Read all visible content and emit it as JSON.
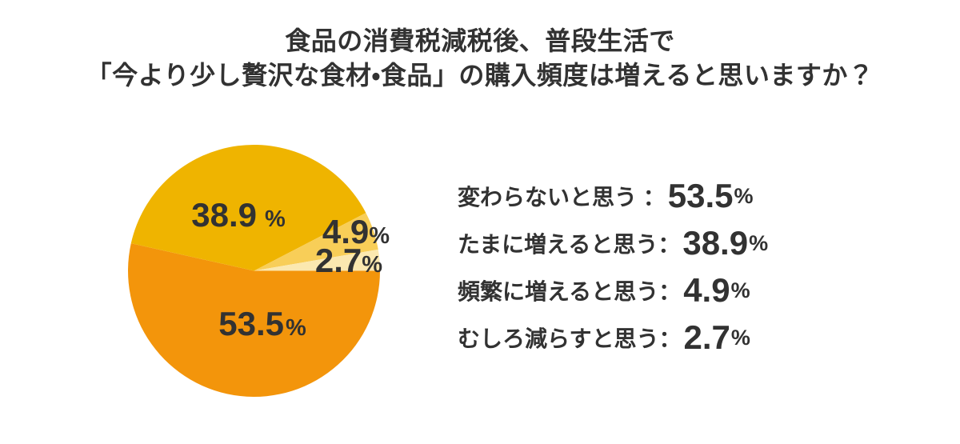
{
  "title": {
    "line1": "食品の消費税減税後、普段生活で",
    "line2": "「今より少し贅沢な食材・食品」の購入頻度は増えると思いますか？"
  },
  "pie_labels": [
    {
      "value": "38.9",
      "unit": "%"
    },
    {
      "value": "53.5",
      "unit": "%"
    },
    {
      "value": "4.9",
      "unit": "%"
    },
    {
      "value": "2.7",
      "unit": "%"
    }
  ],
  "legend": {
    "rows": [
      {
        "label": "変わらないと思う ",
        "colon": "：",
        "value": "53.5",
        "unit": "%"
      },
      {
        "label": "たまに増えると思う",
        "colon": "：",
        "value": "38.9",
        "unit": "%"
      },
      {
        "label": "頻繁に増えると思う",
        "colon": "：",
        "value": "4.9",
        "unit": "%"
      },
      {
        "label": "むしろ減らすと思う",
        "colon": "：",
        "value": "2.7",
        "unit": "%"
      }
    ]
  },
  "colors": {
    "orange": "#F3950B",
    "golden": "#EFB400",
    "light_yellow": "#F8CE58",
    "cream": "#FBE8B0",
    "text": "#323232",
    "background": "#FFFFFF"
  },
  "chart_data": {
    "type": "pie",
    "title": "食品の消費税減税後、普段生活で「今より少し贅沢な食材・食品」の購入頻度は増えると思いますか？",
    "categories": [
      "変わらないと思う",
      "たまに増えると思う",
      "頻繁に増えると思う",
      "むしろ減らすと思う"
    ],
    "values": [
      53.5,
      38.9,
      4.9,
      2.7
    ],
    "unit": "%",
    "colors": [
      "#F3950B",
      "#EFB400",
      "#F8CE58",
      "#FBE8B0"
    ],
    "start_angle_deg": 0,
    "start_reference": "east",
    "direction": "clockwise",
    "legend_position": "right",
    "data_labels_on_pie": [
      "38.9 %",
      "53.5%",
      "4.9%",
      "2.7%"
    ]
  }
}
